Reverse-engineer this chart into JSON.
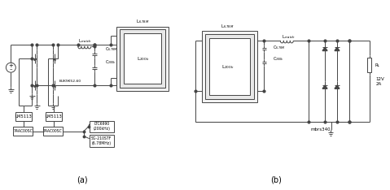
{
  "bg": "#ffffff",
  "lc": "#444444",
  "lw": 0.7,
  "fig_w": 4.79,
  "fig_h": 2.34,
  "dpi": 100,
  "label_a": "(a)",
  "label_b": "(b)",
  "L6M_a": "L$_{6.78M}$",
  "L200_a": "L$_{200k}$",
  "Lm_a": "L$_{match}$",
  "C6M_a": "C$_{6.78M}$",
  "C200_a": "C$_{200k}$",
  "BUK": "BUK9K52-60",
  "LM1": "LM5113",
  "LM2": "LM5113",
  "IC1": "74AC00SC",
  "IC2": "74AC00SC",
  "LTC": "LTC6990\n(200kHz)",
  "SG": "SG-210STF\n(6.78MHz)",
  "L6M_b": "L$_{6.78M}$",
  "L200_b": "L$_{200k}$",
  "Lm_b": "L$_{match}$",
  "C6M_b": "C$_{6.78M}$",
  "C200_b": "C$_{200k}$",
  "mbrs": "mbrs340",
  "pwr": "12V\n2A",
  "RL": "R$_L$"
}
